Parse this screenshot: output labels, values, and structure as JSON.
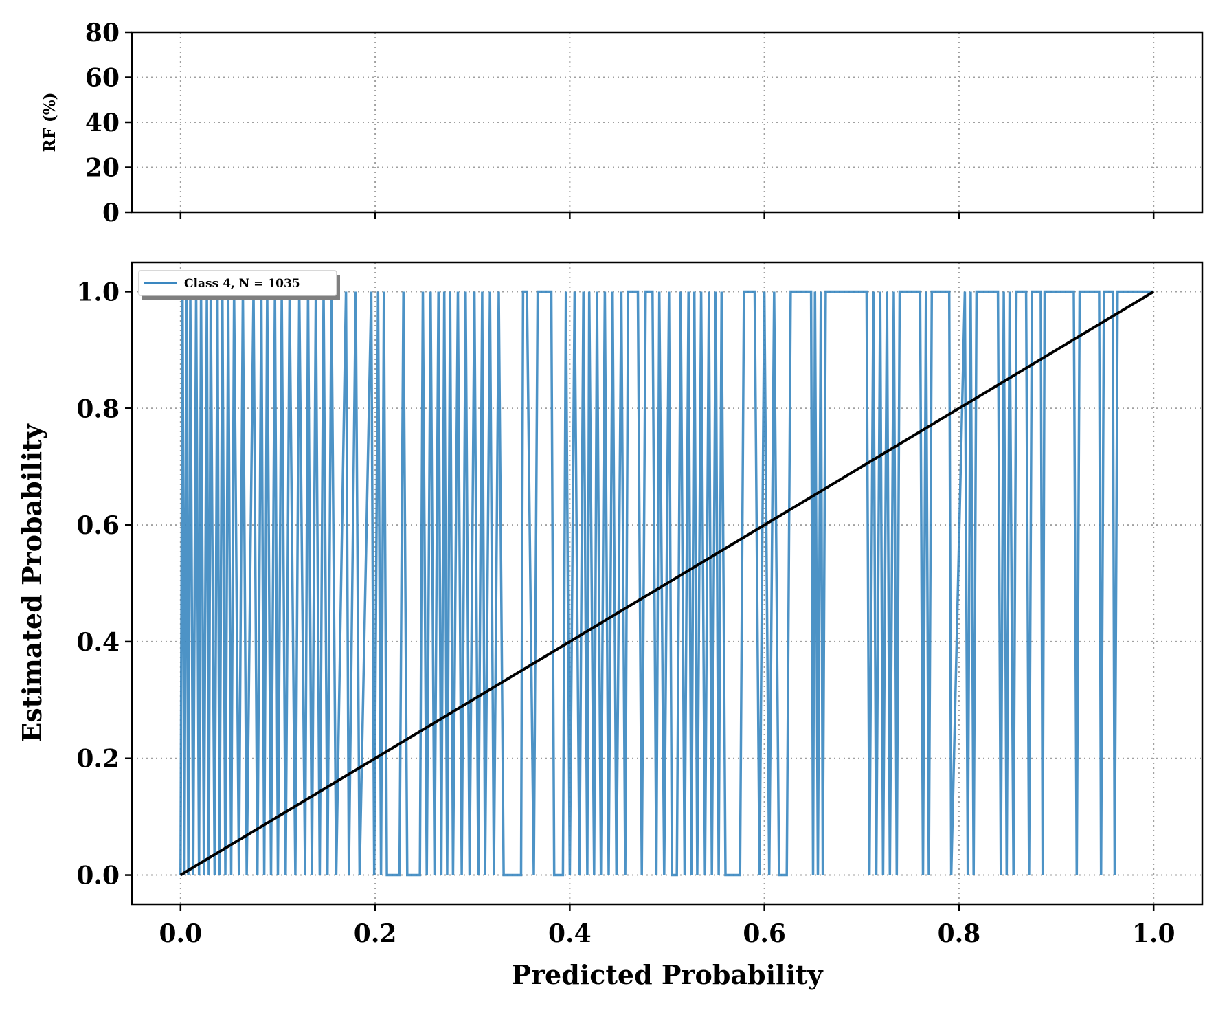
{
  "chart_data": [
    {
      "type": "line",
      "panel": "top",
      "ylabel": "RF (%)",
      "ylim": [
        0,
        80
      ],
      "yticks": [
        "0",
        "20",
        "40",
        "60",
        "80"
      ],
      "xlim": [
        -0.05,
        1.05
      ],
      "xticks": [
        0.0,
        0.2,
        0.4,
        0.6,
        0.8,
        1.0
      ],
      "grid": true,
      "series": []
    },
    {
      "type": "line",
      "panel": "bottom",
      "xlabel": "Predicted Probability",
      "ylabel": "Estimated Probability",
      "xlim": [
        -0.05,
        1.05
      ],
      "ylim": [
        -0.05,
        1.05
      ],
      "xticks": [
        "0.0",
        "0.2",
        "0.4",
        "0.6",
        "0.8",
        "1.0"
      ],
      "yticks": [
        "0.0",
        "0.2",
        "0.4",
        "0.6",
        "0.8",
        "1.0"
      ],
      "grid": true,
      "legend": {
        "placement": "top-left",
        "entries": [
          "Class 4, N = 1035"
        ]
      },
      "series": [
        {
          "name": "Class 4, N = 1035",
          "color": "#3a87c0",
          "points": [
            [
              0.0,
              0
            ],
            [
              0.002,
              1
            ],
            [
              0.004,
              0
            ],
            [
              0.006,
              1
            ],
            [
              0.008,
              0
            ],
            [
              0.01,
              1
            ],
            [
              0.013,
              0
            ],
            [
              0.016,
              1
            ],
            [
              0.019,
              0
            ],
            [
              0.021,
              1
            ],
            [
              0.024,
              0
            ],
            [
              0.027,
              1
            ],
            [
              0.029,
              0
            ],
            [
              0.031,
              1
            ],
            [
              0.035,
              0
            ],
            [
              0.038,
              1
            ],
            [
              0.04,
              0
            ],
            [
              0.043,
              1
            ],
            [
              0.046,
              0
            ],
            [
              0.049,
              1
            ],
            [
              0.052,
              0
            ],
            [
              0.055,
              1
            ],
            [
              0.06,
              0
            ],
            [
              0.064,
              1
            ],
            [
              0.068,
              0
            ],
            [
              0.075,
              1
            ],
            [
              0.079,
              0
            ],
            [
              0.083,
              1
            ],
            [
              0.086,
              0
            ],
            [
              0.089,
              1
            ],
            [
              0.093,
              0
            ],
            [
              0.097,
              1
            ],
            [
              0.1,
              0
            ],
            [
              0.104,
              1
            ],
            [
              0.108,
              0
            ],
            [
              0.112,
              1
            ],
            [
              0.118,
              0
            ],
            [
              0.122,
              1
            ],
            [
              0.128,
              0
            ],
            [
              0.131,
              1
            ],
            [
              0.135,
              0
            ],
            [
              0.139,
              1
            ],
            [
              0.143,
              0
            ],
            [
              0.147,
              1
            ],
            [
              0.151,
              0
            ],
            [
              0.155,
              1
            ],
            [
              0.16,
              0
            ],
            [
              0.17,
              1
            ],
            [
              0.173,
              0
            ],
            [
              0.18,
              1
            ],
            [
              0.184,
              0
            ],
            [
              0.196,
              1
            ],
            [
              0.199,
              0
            ],
            [
              0.203,
              1
            ],
            [
              0.206,
              0
            ],
            [
              0.209,
              1
            ],
            [
              0.212,
              0
            ],
            [
              0.225,
              0
            ],
            [
              0.229,
              1
            ],
            [
              0.233,
              0
            ],
            [
              0.246,
              0
            ],
            [
              0.249,
              1
            ],
            [
              0.253,
              0
            ],
            [
              0.257,
              1
            ],
            [
              0.261,
              0
            ],
            [
              0.265,
              1
            ],
            [
              0.268,
              0
            ],
            [
              0.271,
              1
            ],
            [
              0.274,
              0
            ],
            [
              0.277,
              1
            ],
            [
              0.28,
              0
            ],
            [
              0.285,
              1
            ],
            [
              0.289,
              0
            ],
            [
              0.293,
              1
            ],
            [
              0.297,
              0
            ],
            [
              0.302,
              1
            ],
            [
              0.306,
              0
            ],
            [
              0.31,
              1
            ],
            [
              0.313,
              0
            ],
            [
              0.318,
              1
            ],
            [
              0.322,
              0
            ],
            [
              0.327,
              1
            ],
            [
              0.332,
              0
            ],
            [
              0.35,
              0
            ],
            [
              0.352,
              1
            ],
            [
              0.356,
              1
            ],
            [
              0.363,
              0
            ],
            [
              0.367,
              1
            ],
            [
              0.381,
              1
            ],
            [
              0.384,
              0
            ],
            [
              0.393,
              0
            ],
            [
              0.396,
              1
            ],
            [
              0.4,
              0
            ],
            [
              0.405,
              1
            ],
            [
              0.41,
              0
            ],
            [
              0.414,
              1
            ],
            [
              0.418,
              0
            ],
            [
              0.42,
              1
            ],
            [
              0.425,
              0
            ],
            [
              0.428,
              1
            ],
            [
              0.432,
              0
            ],
            [
              0.436,
              1
            ],
            [
              0.44,
              0
            ],
            [
              0.444,
              1
            ],
            [
              0.448,
              0
            ],
            [
              0.453,
              1
            ],
            [
              0.457,
              0
            ],
            [
              0.46,
              1
            ],
            [
              0.47,
              1
            ],
            [
              0.474,
              0
            ],
            [
              0.478,
              1
            ],
            [
              0.485,
              1
            ],
            [
              0.489,
              0
            ],
            [
              0.492,
              1
            ],
            [
              0.497,
              0
            ],
            [
              0.502,
              1
            ],
            [
              0.505,
              0
            ],
            [
              0.51,
              0
            ],
            [
              0.514,
              1
            ],
            [
              0.518,
              0
            ],
            [
              0.522,
              1
            ],
            [
              0.525,
              0
            ],
            [
              0.528,
              1
            ],
            [
              0.531,
              0
            ],
            [
              0.535,
              1
            ],
            [
              0.539,
              0
            ],
            [
              0.543,
              1
            ],
            [
              0.546,
              0
            ],
            [
              0.55,
              1
            ],
            [
              0.553,
              0
            ],
            [
              0.556,
              1
            ],
            [
              0.56,
              0
            ],
            [
              0.575,
              0
            ],
            [
              0.579,
              1
            ],
            [
              0.59,
              1
            ],
            [
              0.595,
              0
            ],
            [
              0.6,
              1
            ],
            [
              0.605,
              0
            ],
            [
              0.61,
              1
            ],
            [
              0.615,
              0
            ],
            [
              0.623,
              0
            ],
            [
              0.627,
              1
            ],
            [
              0.648,
              1
            ],
            [
              0.65,
              0
            ],
            [
              0.652,
              1
            ],
            [
              0.655,
              0
            ],
            [
              0.658,
              1
            ],
            [
              0.66,
              0
            ],
            [
              0.663,
              1
            ],
            [
              0.705,
              1
            ],
            [
              0.708,
              0
            ],
            [
              0.712,
              1
            ],
            [
              0.715,
              0
            ],
            [
              0.719,
              1
            ],
            [
              0.722,
              0
            ],
            [
              0.726,
              1
            ],
            [
              0.729,
              0
            ],
            [
              0.733,
              1
            ],
            [
              0.736,
              0
            ],
            [
              0.739,
              1
            ],
            [
              0.76,
              1
            ],
            [
              0.763,
              0
            ],
            [
              0.766,
              1
            ],
            [
              0.769,
              0
            ],
            [
              0.772,
              1
            ],
            [
              0.79,
              1
            ],
            [
              0.792,
              0
            ],
            [
              0.806,
              1
            ],
            [
              0.809,
              0
            ],
            [
              0.812,
              1
            ],
            [
              0.815,
              0
            ],
            [
              0.818,
              1
            ],
            [
              0.84,
              1
            ],
            [
              0.843,
              0
            ],
            [
              0.846,
              1
            ],
            [
              0.849,
              0
            ],
            [
              0.852,
              1
            ],
            [
              0.856,
              0
            ],
            [
              0.859,
              1
            ],
            [
              0.869,
              1
            ],
            [
              0.872,
              0
            ],
            [
              0.875,
              1
            ],
            [
              0.884,
              1
            ],
            [
              0.886,
              0
            ],
            [
              0.888,
              1
            ],
            [
              0.918,
              1
            ],
            [
              0.921,
              0
            ],
            [
              0.924,
              1
            ],
            [
              0.944,
              1
            ],
            [
              0.946,
              0
            ],
            [
              0.949,
              1
            ],
            [
              0.958,
              1
            ],
            [
              0.96,
              0
            ],
            [
              0.963,
              1
            ],
            [
              1.0,
              1
            ]
          ]
        },
        {
          "name": "",
          "color": "#000000",
          "points": [
            [
              0,
              0
            ],
            [
              1,
              1
            ]
          ]
        }
      ]
    }
  ]
}
